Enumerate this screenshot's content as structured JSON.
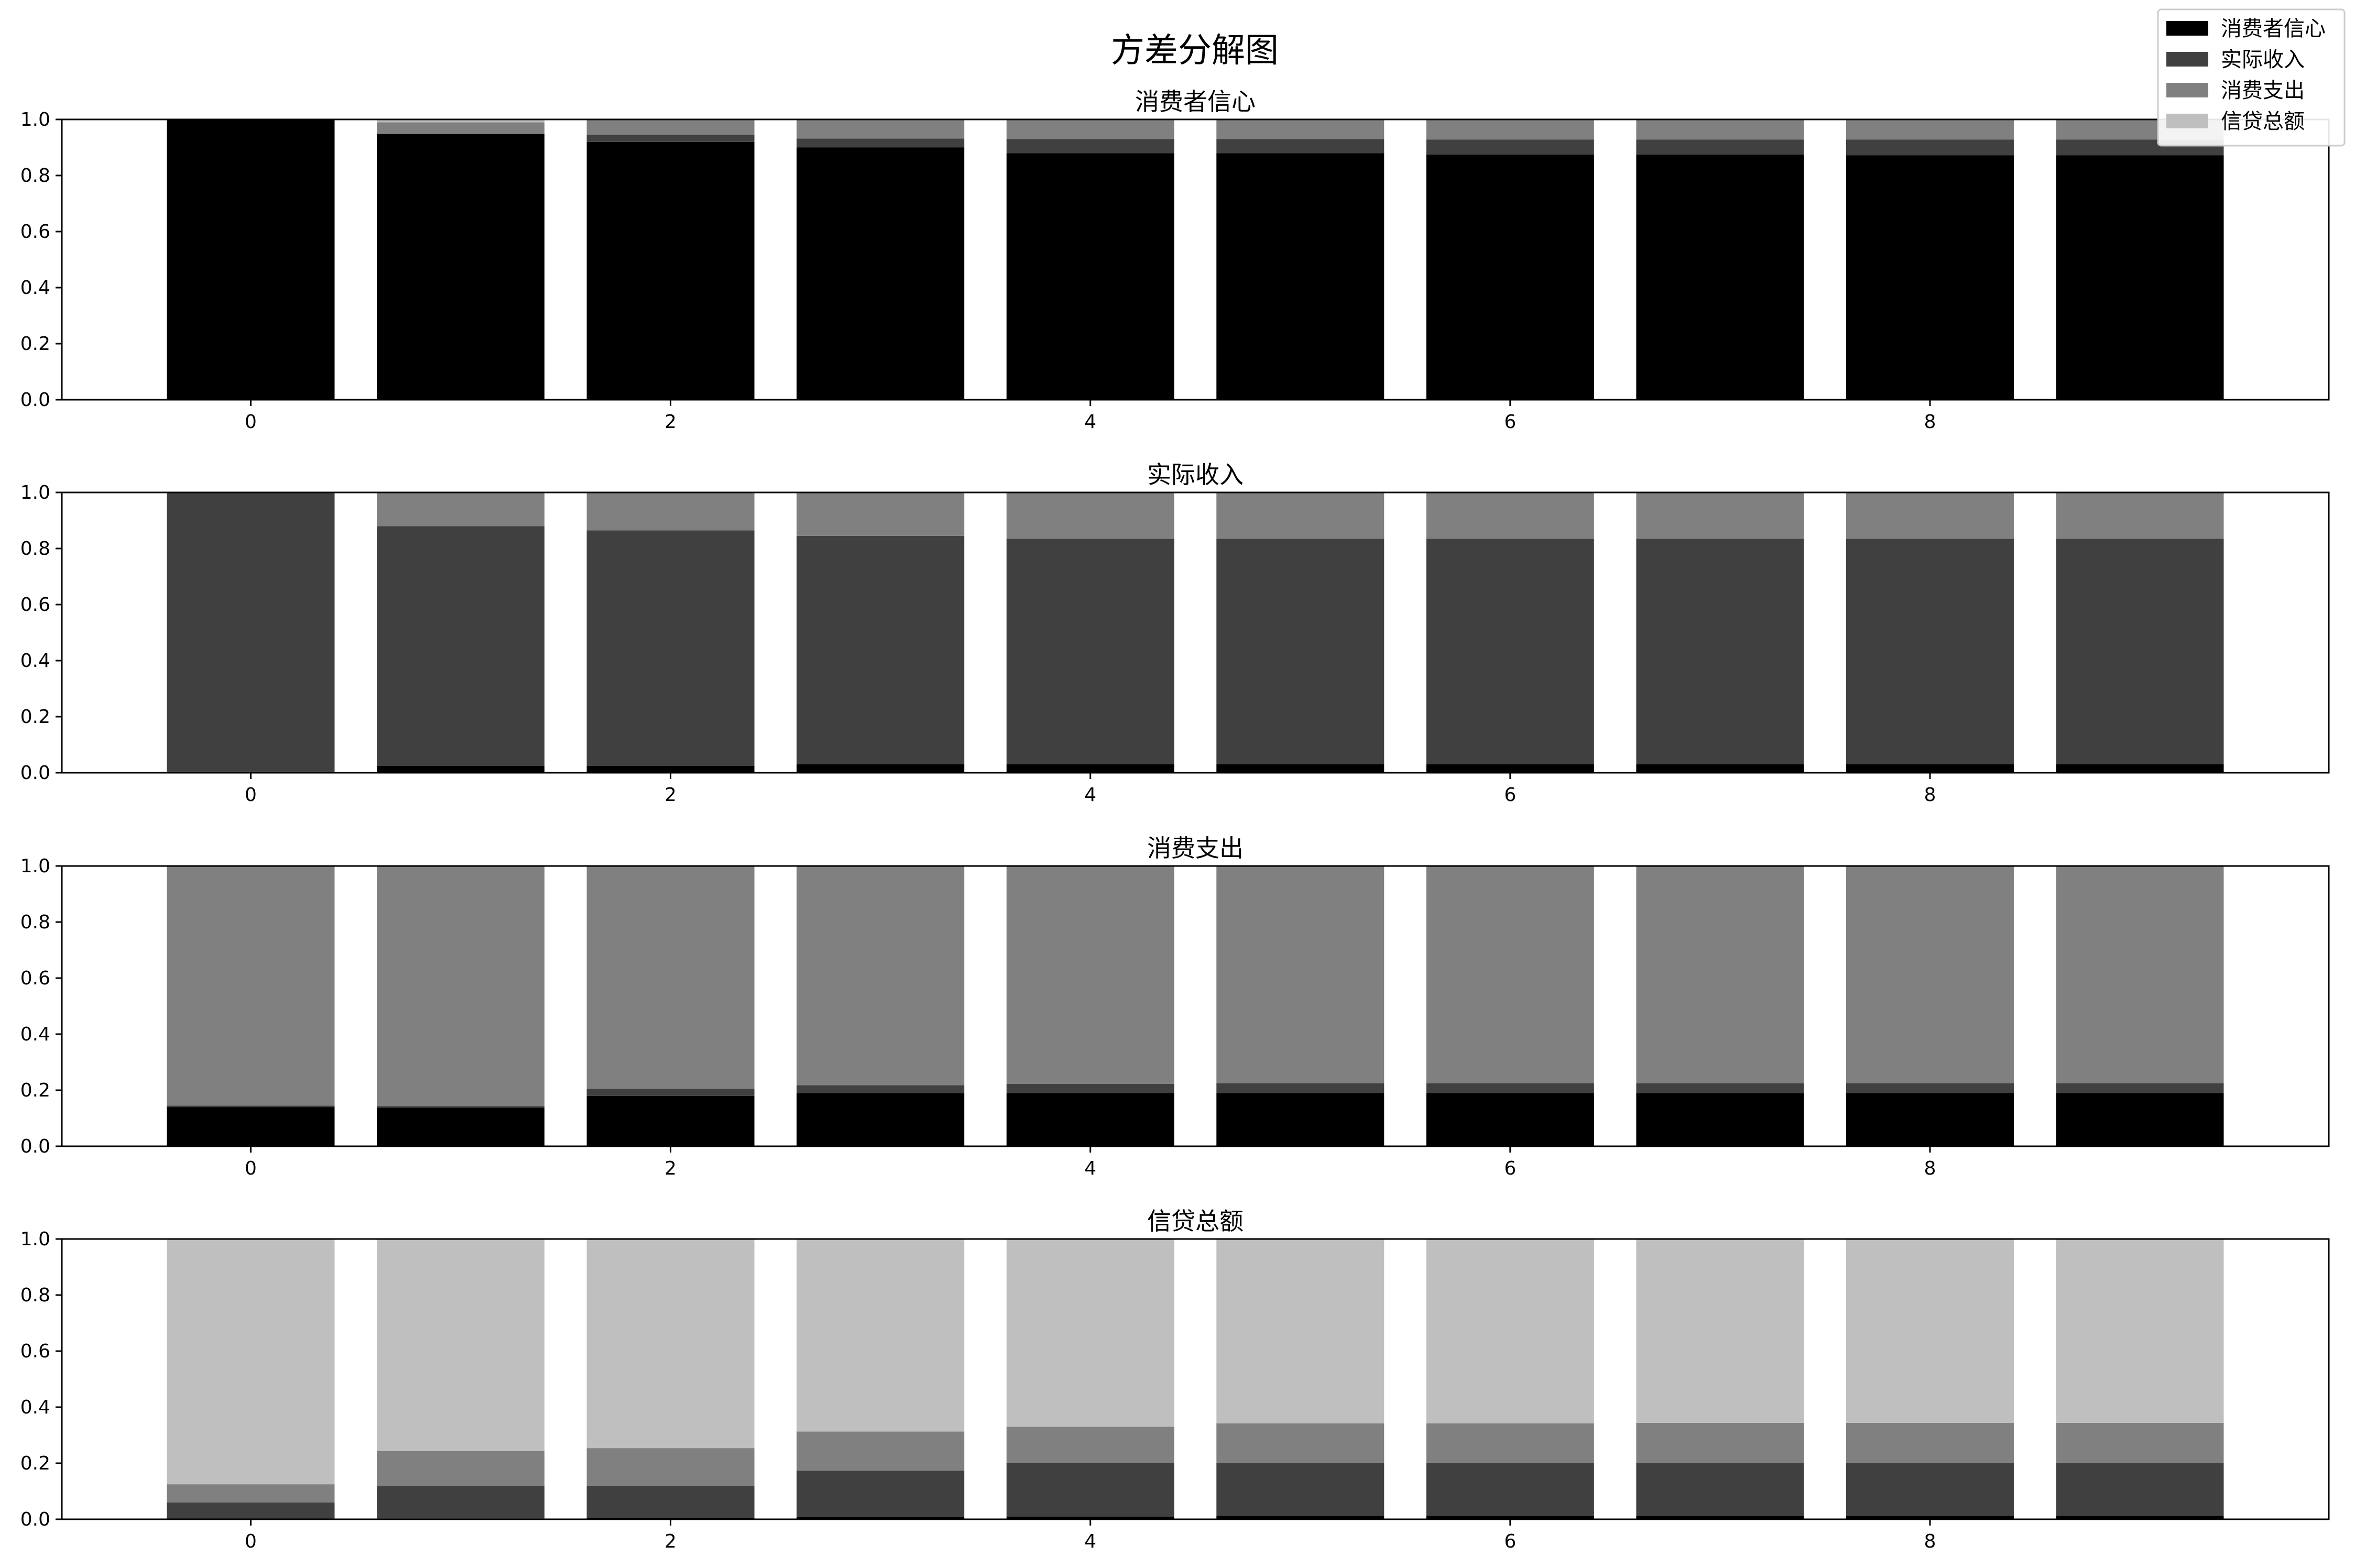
{
  "figure": {
    "title": "方差分解图"
  },
  "chart_data": {
    "type": "bar",
    "stacked": true,
    "title": "方差分解图",
    "legend": {
      "placement": "top-right",
      "entries": [
        "消费者信心",
        "实际收入",
        "消费支出",
        "信贷总额"
      ]
    },
    "colors": {
      "消费者信心": "#000000",
      "实际收入": "#404040",
      "消费支出": "#808080",
      "信贷总额": "#bfbfbf"
    },
    "x": [
      0,
      1,
      2,
      3,
      4,
      5,
      6,
      7,
      8,
      9
    ],
    "xticks": [
      0,
      2,
      4,
      6,
      8
    ],
    "xlim": [
      -0.9,
      9.9
    ],
    "ylim": [
      0,
      1.0
    ],
    "yticks": [
      0.0,
      0.2,
      0.4,
      0.6,
      0.8,
      1.0
    ],
    "panels": [
      {
        "title": "消费者信心",
        "series": [
          {
            "name": "消费者信心",
            "values": [
              1.0,
              0.948,
              0.92,
              0.9,
              0.88,
              0.88,
              0.875,
              0.875,
              0.872,
              0.872
            ]
          },
          {
            "name": "实际收入",
            "values": [
              0.0,
              0.002,
              0.025,
              0.032,
              0.05,
              0.05,
              0.053,
              0.053,
              0.056,
              0.056
            ]
          },
          {
            "name": "消费支出",
            "values": [
              0.0,
              0.04,
              0.055,
              0.068,
              0.068,
              0.068,
              0.07,
              0.07,
              0.07,
              0.07
            ]
          },
          {
            "name": "信贷总额",
            "values": [
              0.0,
              0.01,
              0.0,
              0.0,
              0.002,
              0.002,
              0.002,
              0.002,
              0.002,
              0.002
            ]
          }
        ]
      },
      {
        "title": "实际收入",
        "series": [
          {
            "name": "消费者信心",
            "values": [
              0.004,
              0.025,
              0.025,
              0.03,
              0.03,
              0.03,
              0.03,
              0.03,
              0.03,
              0.03
            ]
          },
          {
            "name": "实际收入",
            "values": [
              0.996,
              0.855,
              0.84,
              0.815,
              0.805,
              0.805,
              0.805,
              0.805,
              0.805,
              0.805
            ]
          },
          {
            "name": "消费支出",
            "values": [
              0.0,
              0.12,
              0.135,
              0.155,
              0.165,
              0.165,
              0.165,
              0.165,
              0.165,
              0.165
            ]
          },
          {
            "name": "信贷总额",
            "values": [
              0.0,
              0.0,
              0.0,
              0.0,
              0.0,
              0.0,
              0.0,
              0.0,
              0.0,
              0.0
            ]
          }
        ]
      },
      {
        "title": "消费支出",
        "series": [
          {
            "name": "消费者信心",
            "values": [
              0.14,
              0.138,
              0.18,
              0.19,
              0.19,
              0.19,
              0.19,
              0.19,
              0.19,
              0.19
            ]
          },
          {
            "name": "实际收入",
            "values": [
              0.005,
              0.005,
              0.025,
              0.028,
              0.033,
              0.035,
              0.035,
              0.035,
              0.035,
              0.035
            ]
          },
          {
            "name": "消费支出",
            "values": [
              0.855,
              0.857,
              0.795,
              0.782,
              0.777,
              0.775,
              0.775,
              0.775,
              0.775,
              0.775
            ]
          },
          {
            "name": "信贷总额",
            "values": [
              0.0,
              0.0,
              0.0,
              0.0,
              0.0,
              0.0,
              0.0,
              0.0,
              0.0,
              0.0
            ]
          }
        ]
      },
      {
        "title": "信贷总额",
        "series": [
          {
            "name": "消费者信心",
            "values": [
              0.0,
              0.003,
              0.004,
              0.008,
              0.01,
              0.012,
              0.012,
              0.012,
              0.012,
              0.012
            ]
          },
          {
            "name": "实际收入",
            "values": [
              0.06,
              0.115,
              0.115,
              0.165,
              0.19,
              0.19,
              0.19,
              0.19,
              0.19,
              0.19
            ]
          },
          {
            "name": "消费支出",
            "values": [
              0.065,
              0.125,
              0.135,
              0.14,
              0.13,
              0.14,
              0.14,
              0.142,
              0.142,
              0.142
            ]
          },
          {
            "name": "信贷总额",
            "values": [
              0.875,
              0.757,
              0.746,
              0.687,
              0.67,
              0.658,
              0.658,
              0.656,
              0.656,
              0.656
            ]
          }
        ]
      }
    ]
  }
}
